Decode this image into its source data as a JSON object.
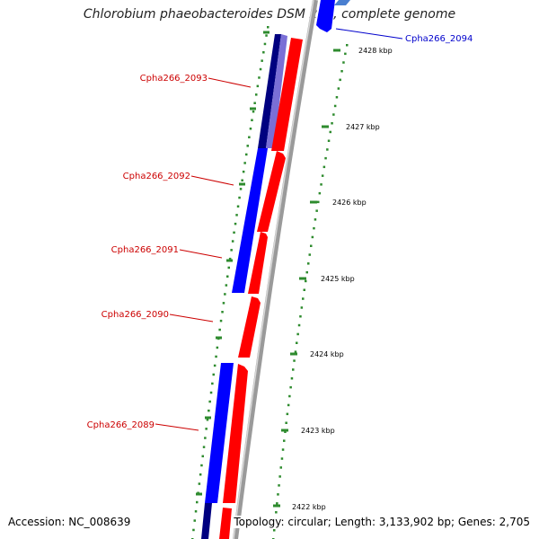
{
  "title": "Chlorobium phaeobacteroides DSM 266, complete genome",
  "footer": {
    "accession": "Accession: NC_008639",
    "topology": "Topology: circular; Length: 3,133,902 bp; Genes: 2,705"
  },
  "scale_labels": [
    "2428 kbp",
    "2427 kbp",
    "2426 kbp",
    "2425 kbp",
    "2424 kbp",
    "2423 kbp",
    "2422 kbp"
  ],
  "gene_labels": [
    {
      "id": "Cpha266_2094",
      "color": "#0000cc"
    },
    {
      "id": "Cpha266_2093",
      "color": "#cc0000"
    },
    {
      "id": "Cpha266_2092",
      "color": "#cc0000"
    },
    {
      "id": "Cpha266_2091",
      "color": "#cc0000"
    },
    {
      "id": "Cpha266_2090",
      "color": "#cc0000"
    },
    {
      "id": "Cpha266_2089",
      "color": "#cc0000"
    }
  ],
  "colors": {
    "forward_strand": "#ff0000",
    "reverse_strand": "#0000ff",
    "reverse_strand_dark": "#000080",
    "reverse_strand_light": "#7a6fd6",
    "backbone": "#999999",
    "ticks": "#2e8b2e"
  }
}
